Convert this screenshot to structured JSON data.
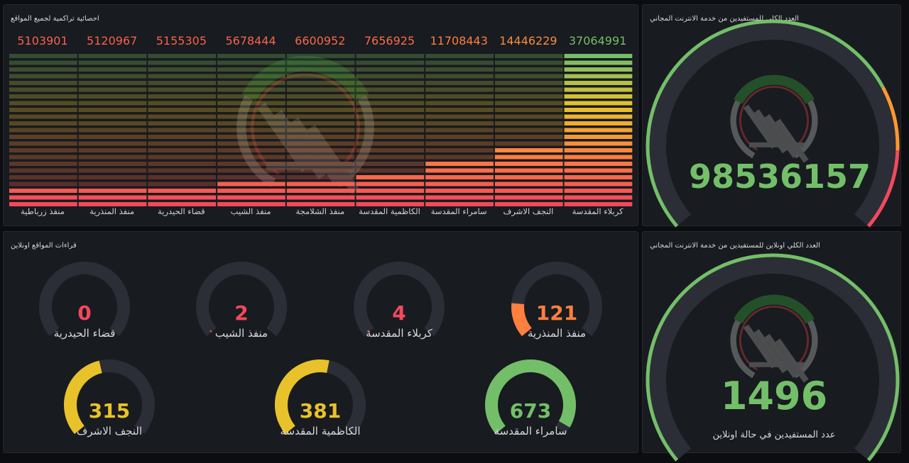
{
  "panels": {
    "cumulative": {
      "title": "احصائية تراكمية لجميع المواقع",
      "max": 37064991,
      "bars": [
        {
          "label": "منفذ زرباطية",
          "value": 5103901,
          "display": "5103901"
        },
        {
          "label": "منفذ المنذرية",
          "value": 5120967,
          "display": "5120967"
        },
        {
          "label": "قضاء الحيدرية",
          "value": 5155305,
          "display": "5155305"
        },
        {
          "label": "منفذ الشيب",
          "value": 5678444,
          "display": "5678444"
        },
        {
          "label": "منفذ الشلامجة",
          "value": 6600952,
          "display": "6600952"
        },
        {
          "label": "الكاظمية المقدسة",
          "value": 7656925,
          "display": "7656925"
        },
        {
          "label": "سامراء المقدسة",
          "value": 11708443,
          "display": "11708443"
        },
        {
          "label": "النجف الاشرف",
          "value": 14446229,
          "display": "14446229"
        },
        {
          "label": "كربلاء المقدسة",
          "value": 37064991,
          "display": "37064991"
        }
      ]
    },
    "total": {
      "title": "العدد الكلي للمستفيدين من خدمة الانترنت المجاني",
      "value": "98536157",
      "fraction": 1.0,
      "color": "#73bf69"
    },
    "readings": {
      "title": "قراءات المواقع اونلاين",
      "max": 700,
      "gauges": [
        {
          "label": "منفذ المنذرية",
          "value": "121",
          "fraction": 0.173,
          "color": "#ff7f3f"
        },
        {
          "label": "كربلاء المقدسة",
          "value": "4",
          "fraction": 0.006,
          "color": "#f2495c"
        },
        {
          "label": "منفذ الشيب",
          "value": "2",
          "fraction": 0.003,
          "color": "#f2495c"
        },
        {
          "label": "قضاء الحيدرية",
          "value": "0",
          "fraction": 0.0,
          "color": "#f2495c"
        },
        {
          "label": "سامراء المقدسة",
          "value": "673",
          "fraction": 0.961,
          "color": "#73bf69"
        },
        {
          "label": "الكاظمية المقدسة",
          "value": "381",
          "fraction": 0.544,
          "color": "#e8c22a"
        },
        {
          "label": "النجف الاشرف",
          "value": "315",
          "fraction": 0.45,
          "color": "#e8c22a"
        }
      ]
    },
    "online": {
      "title": "العدد الكلي اونلاين للمستفيدين من خدمة الانترنت المجاني",
      "value": "1496",
      "fraction": 1.0,
      "color": "#73bf69",
      "caption": "عدد المستفيدين في حالة اونلاين"
    }
  },
  "colors": {
    "green": "#73bf69",
    "yellow": "#e8c22a",
    "orange": "#ff7f3f",
    "red": "#f2495c",
    "track": "#2b2e36",
    "panel": "#181b1f"
  },
  "icons": {
    "watermark": "hashd-logo-watermark"
  }
}
